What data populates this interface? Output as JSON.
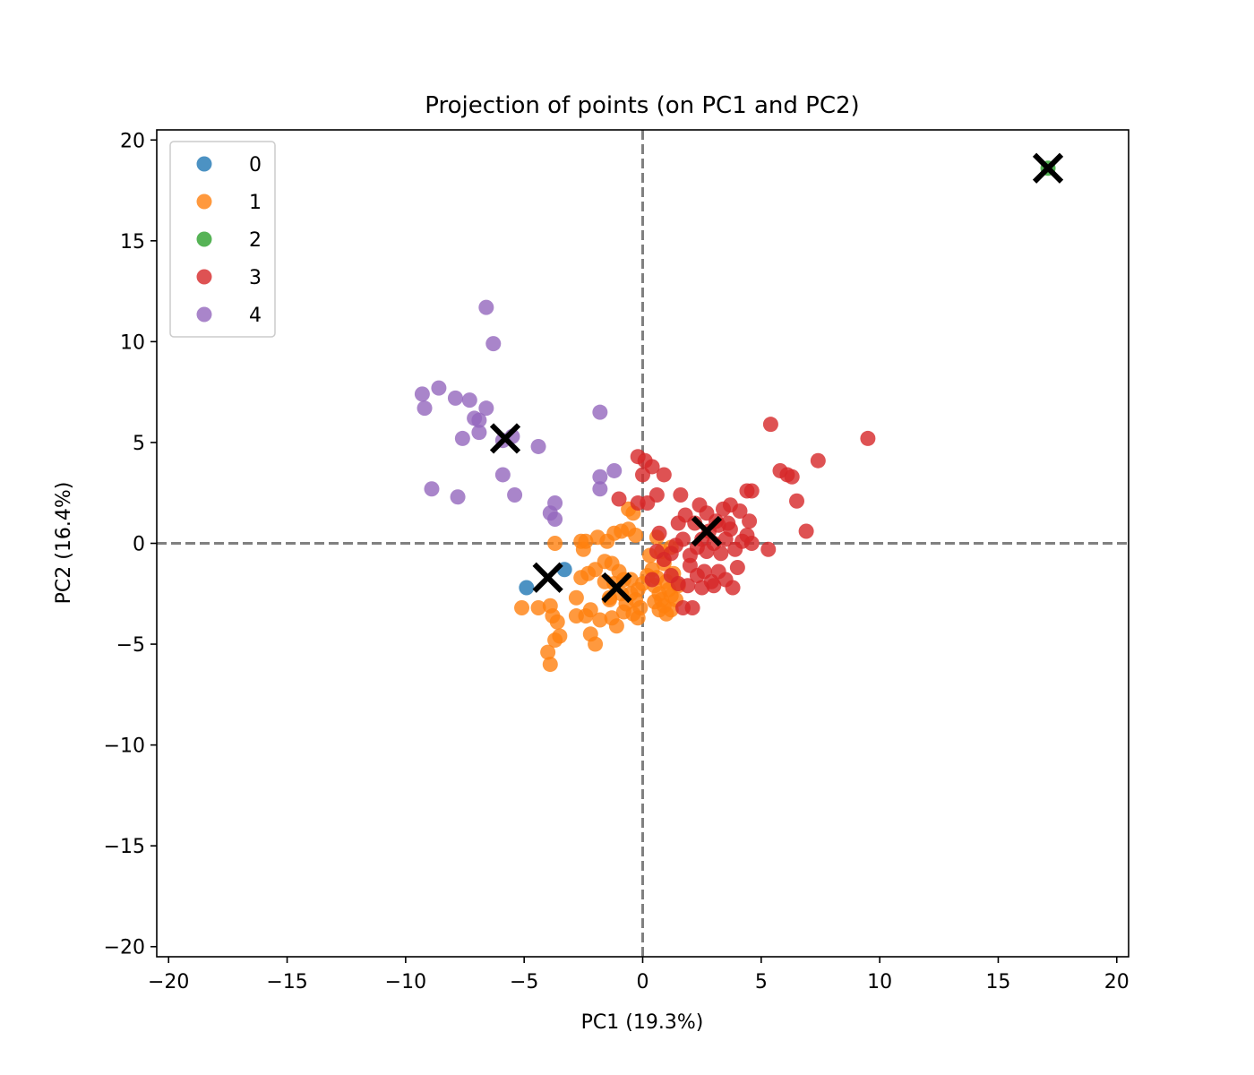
{
  "chart_data": {
    "type": "scatter",
    "title": "Projection of points (on PC1 and PC2)",
    "xlabel": "PC1 (19.3%)",
    "ylabel": "PC2 (16.4%)",
    "xlim": [
      -20.5,
      20.5
    ],
    "ylim": [
      -20.5,
      20.5
    ],
    "xticks": [
      -20,
      -15,
      -10,
      -5,
      0,
      5,
      10,
      15,
      20
    ],
    "yticks": [
      -20,
      -15,
      -10,
      -5,
      0,
      5,
      10,
      15,
      20
    ],
    "xtick_labels": [
      "−20",
      "−15",
      "−10",
      "−5",
      "0",
      "5",
      "10",
      "15",
      "20"
    ],
    "ytick_labels": [
      "−20",
      "−15",
      "−10",
      "−5",
      "0",
      "5",
      "10",
      "15",
      "20"
    ],
    "grid": false,
    "reference_lines": {
      "x": 0,
      "y": 0,
      "style": "dashed",
      "color": "#808080"
    },
    "legend_position": "top-left",
    "series": [
      {
        "name": "0",
        "color": "#1f77b4",
        "points": [
          [
            -4.9,
            -2.2
          ],
          [
            -3.3,
            -1.3
          ]
        ]
      },
      {
        "name": "1",
        "color": "#ff7f0e",
        "points": [
          [
            -5.1,
            -3.2
          ],
          [
            -4.4,
            -3.2
          ],
          [
            -3.9,
            -3.1
          ],
          [
            -4.0,
            -5.4
          ],
          [
            -3.9,
            -6.0
          ],
          [
            -3.7,
            -4.8
          ],
          [
            -3.5,
            -4.6
          ],
          [
            -3.8,
            -3.6
          ],
          [
            -3.6,
            -3.9
          ],
          [
            -3.7,
            0.0
          ],
          [
            -2.8,
            -3.6
          ],
          [
            -2.4,
            -3.6
          ],
          [
            -2.2,
            -4.5
          ],
          [
            -2.0,
            -5.0
          ],
          [
            -2.2,
            -3.3
          ],
          [
            -1.8,
            -3.8
          ],
          [
            -1.3,
            -3.7
          ],
          [
            -1.1,
            -4.1
          ],
          [
            -0.8,
            -3.4
          ],
          [
            -0.4,
            -3.5
          ],
          [
            -0.2,
            -3.7
          ],
          [
            -0.1,
            -3.2
          ],
          [
            -2.6,
            -1.7
          ],
          [
            -2.3,
            -1.5
          ],
          [
            -2.0,
            -1.3
          ],
          [
            -1.6,
            -1.9
          ],
          [
            -1.3,
            -1.0
          ],
          [
            -1.0,
            -1.4
          ],
          [
            -0.8,
            -1.8
          ],
          [
            -0.5,
            -2.5
          ],
          [
            -0.3,
            -2.8
          ],
          [
            -2.6,
            0.1
          ],
          [
            -2.4,
            0.1
          ],
          [
            -2.5,
            -0.3
          ],
          [
            -1.9,
            0.3
          ],
          [
            -1.5,
            0.1
          ],
          [
            -1.2,
            0.5
          ],
          [
            -0.9,
            0.6
          ],
          [
            -0.6,
            0.7
          ],
          [
            -0.3,
            0.4
          ],
          [
            -0.6,
            1.7
          ],
          [
            -0.4,
            1.5
          ],
          [
            -1.6,
            -0.9
          ],
          [
            -1.4,
            -2.7
          ],
          [
            -1.2,
            -2.0
          ],
          [
            -0.9,
            -2.5
          ],
          [
            -0.7,
            -3.0
          ],
          [
            -0.5,
            -1.8
          ],
          [
            -0.2,
            -2.3
          ],
          [
            0.4,
            -1.3
          ],
          [
            0.5,
            -2.1
          ],
          [
            0.6,
            -1.7
          ],
          [
            0.7,
            -2.5
          ],
          [
            0.8,
            -2.8
          ],
          [
            0.9,
            -1.0
          ],
          [
            1.0,
            -1.9
          ],
          [
            1.1,
            -2.3
          ],
          [
            1.2,
            -2.6
          ],
          [
            1.3,
            -1.5
          ],
          [
            1.4,
            -2.8
          ],
          [
            0.7,
            -3.3
          ],
          [
            0.9,
            -3.1
          ],
          [
            1.2,
            -3.3
          ],
          [
            0.3,
            -0.6
          ],
          [
            0.6,
            0.3
          ],
          [
            0.8,
            -0.4
          ],
          [
            1.2,
            -0.2
          ],
          [
            0.0,
            -2.0
          ],
          [
            0.2,
            -1.6
          ],
          [
            1.5,
            -2.1
          ],
          [
            0.5,
            -2.9
          ],
          [
            1.0,
            -3.5
          ],
          [
            -1.4,
            -2.8
          ],
          [
            -2.8,
            -2.7
          ]
        ]
      },
      {
        "name": "2",
        "color": "#2ca02c",
        "points": [
          [
            17.1,
            18.6
          ]
        ]
      },
      {
        "name": "3",
        "color": "#d62728",
        "points": [
          [
            -0.2,
            2.0
          ],
          [
            -1.0,
            2.2
          ],
          [
            -0.2,
            4.3
          ],
          [
            0.1,
            4.1
          ],
          [
            0.4,
            3.8
          ],
          [
            0.0,
            3.4
          ],
          [
            0.2,
            2.0
          ],
          [
            0.9,
            3.4
          ],
          [
            0.6,
            2.4
          ],
          [
            1.6,
            2.4
          ],
          [
            0.4,
            -1.8
          ],
          [
            0.6,
            -0.4
          ],
          [
            0.7,
            0.5
          ],
          [
            1.2,
            -0.5
          ],
          [
            1.4,
            -0.1
          ],
          [
            1.7,
            0.2
          ],
          [
            2.0,
            -0.6
          ],
          [
            2.3,
            -0.2
          ],
          [
            2.5,
            0.2
          ],
          [
            2.7,
            -0.4
          ],
          [
            3.0,
            0.0
          ],
          [
            3.3,
            -0.5
          ],
          [
            3.5,
            0.2
          ],
          [
            3.7,
            0.7
          ],
          [
            3.9,
            -0.3
          ],
          [
            4.2,
            0.1
          ],
          [
            4.4,
            0.4
          ],
          [
            4.5,
            1.1
          ],
          [
            4.6,
            0.0
          ],
          [
            1.8,
            1.4
          ],
          [
            2.2,
            1.0
          ],
          [
            2.4,
            1.9
          ],
          [
            2.7,
            1.5
          ],
          [
            3.1,
            1.1
          ],
          [
            3.4,
            1.7
          ],
          [
            3.7,
            1.9
          ],
          [
            4.1,
            1.6
          ],
          [
            4.4,
            2.6
          ],
          [
            4.6,
            2.6
          ],
          [
            2.0,
            -1.1
          ],
          [
            2.3,
            -1.6
          ],
          [
            2.6,
            -1.4
          ],
          [
            2.9,
            -1.9
          ],
          [
            3.2,
            -1.4
          ],
          [
            3.5,
            -1.8
          ],
          [
            3.8,
            -2.2
          ],
          [
            4.0,
            -1.2
          ],
          [
            1.7,
            -3.2
          ],
          [
            2.1,
            -3.2
          ],
          [
            1.2,
            -1.6
          ],
          [
            1.5,
            -2.0
          ],
          [
            0.9,
            -0.8
          ],
          [
            1.9,
            -2.1
          ],
          [
            2.5,
            -2.2
          ],
          [
            3.0,
            -2.1
          ],
          [
            5.3,
            -0.3
          ],
          [
            5.4,
            5.9
          ],
          [
            5.8,
            3.6
          ],
          [
            6.1,
            3.4
          ],
          [
            6.3,
            3.3
          ],
          [
            6.5,
            2.1
          ],
          [
            6.9,
            0.6
          ],
          [
            7.4,
            4.1
          ],
          [
            9.5,
            5.2
          ],
          [
            2.8,
            0.6
          ],
          [
            3.2,
            0.9
          ],
          [
            1.5,
            1.0
          ],
          [
            3.6,
            1.0
          ]
        ]
      },
      {
        "name": "4",
        "color": "#9467bd",
        "points": [
          [
            -6.6,
            11.7
          ],
          [
            -6.3,
            9.9
          ],
          [
            -9.3,
            7.4
          ],
          [
            -9.2,
            6.7
          ],
          [
            -8.6,
            7.7
          ],
          [
            -7.9,
            7.2
          ],
          [
            -7.3,
            7.1
          ],
          [
            -7.1,
            6.2
          ],
          [
            -6.9,
            6.1
          ],
          [
            -6.6,
            6.7
          ],
          [
            -6.9,
            5.5
          ],
          [
            -7.6,
            5.2
          ],
          [
            -5.9,
            5.1
          ],
          [
            -5.5,
            5.3
          ],
          [
            -4.4,
            4.8
          ],
          [
            -5.9,
            3.4
          ],
          [
            -5.4,
            2.4
          ],
          [
            -8.9,
            2.7
          ],
          [
            -7.8,
            2.3
          ],
          [
            -3.7,
            2.0
          ],
          [
            -3.9,
            1.5
          ],
          [
            -3.7,
            1.2
          ],
          [
            -1.8,
            6.5
          ],
          [
            -1.8,
            3.3
          ],
          [
            -1.8,
            2.7
          ],
          [
            -1.2,
            3.6
          ]
        ]
      }
    ],
    "centroids": {
      "marker": "x",
      "color": "#000000",
      "points": [
        [
          -4.0,
          -1.7
        ],
        [
          17.1,
          18.6
        ],
        [
          -1.1,
          -2.2
        ],
        [
          2.7,
          0.6
        ],
        [
          -5.8,
          5.2
        ]
      ]
    }
  }
}
